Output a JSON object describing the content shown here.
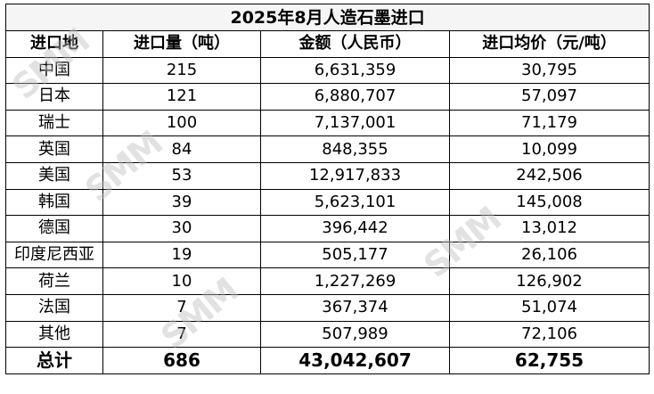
{
  "title": "2025年8月人造石墨进口",
  "headers": [
    "进口地",
    "进口量（吨）",
    "金额（人民币）",
    "进口均价（元/吨）"
  ],
  "rows": [
    [
      "中国",
      "215",
      "6,631,359",
      "30,795"
    ],
    [
      "日本",
      "121",
      "6,880,707",
      "57,097"
    ],
    [
      "瑞士",
      "100",
      "7,137,001",
      "71,179"
    ],
    [
      "英国",
      "84",
      "848,355",
      "10,099"
    ],
    [
      "美国",
      "53",
      "12,917,833",
      "242,506"
    ],
    [
      "韩国",
      "39",
      "5,623,101",
      "145,008"
    ],
    [
      "德国",
      "30",
      "396,442",
      "13,012"
    ],
    [
      "印度尼西亚",
      "19",
      "505,177",
      "26,106"
    ],
    [
      "荷兰",
      "10",
      "1,227,269",
      "126,902"
    ],
    [
      "法国",
      "7",
      "367,374",
      "51,074"
    ],
    [
      "其他",
      "7",
      "507,989",
      "72,106"
    ]
  ],
  "total": [
    "总计",
    "686",
    "43,042,607",
    "62,755"
  ],
  "watermark": "SMM",
  "title_bg_color": "#f5f5f5"
}
